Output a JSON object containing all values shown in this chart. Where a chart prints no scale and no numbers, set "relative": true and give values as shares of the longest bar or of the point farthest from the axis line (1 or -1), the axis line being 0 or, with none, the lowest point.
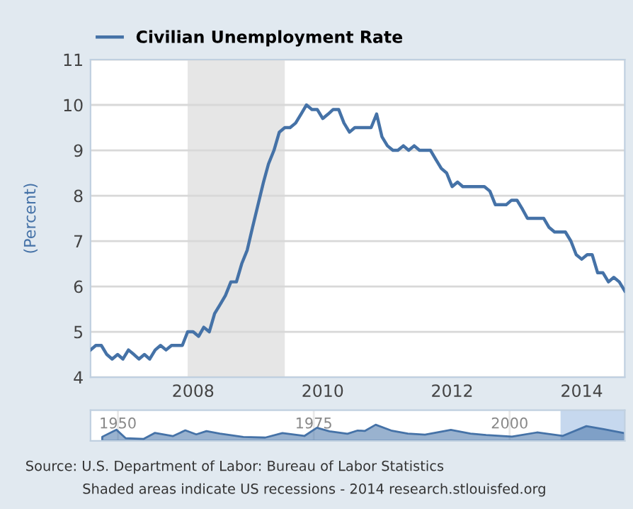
{
  "chart_data": [
    {
      "type": "line",
      "ylabel": "(Percent)",
      "legend": "top",
      "grid": "y",
      "marker": "none",
      "line_style": "solid",
      "x": [
        "2006-06",
        "2006-07",
        "2006-08",
        "2006-09",
        "2006-10",
        "2006-11",
        "2006-12",
        "2007-01",
        "2007-02",
        "2007-03",
        "2007-04",
        "2007-05",
        "2007-06",
        "2007-07",
        "2007-08",
        "2007-09",
        "2007-10",
        "2007-11",
        "2007-12",
        "2008-01",
        "2008-02",
        "2008-03",
        "2008-04",
        "2008-05",
        "2008-06",
        "2008-07",
        "2008-08",
        "2008-09",
        "2008-10",
        "2008-11",
        "2008-12",
        "2009-01",
        "2009-02",
        "2009-03",
        "2009-04",
        "2009-05",
        "2009-06",
        "2009-07",
        "2009-08",
        "2009-09",
        "2009-10",
        "2009-11",
        "2009-12",
        "2010-01",
        "2010-02",
        "2010-03",
        "2010-04",
        "2010-05",
        "2010-06",
        "2010-07",
        "2010-08",
        "2010-09",
        "2010-10",
        "2010-11",
        "2010-12",
        "2011-01",
        "2011-02",
        "2011-03",
        "2011-04",
        "2011-05",
        "2011-06",
        "2011-07",
        "2011-08",
        "2011-09",
        "2011-10",
        "2011-11",
        "2011-12",
        "2012-01",
        "2012-02",
        "2012-03",
        "2012-04",
        "2012-05",
        "2012-06",
        "2012-07",
        "2012-08",
        "2012-09",
        "2012-10",
        "2012-11",
        "2012-12",
        "2013-01",
        "2013-02",
        "2013-03",
        "2013-04",
        "2013-05",
        "2013-06",
        "2013-07",
        "2013-08",
        "2013-09",
        "2013-10",
        "2013-11",
        "2013-12",
        "2014-01",
        "2014-02",
        "2014-03",
        "2014-04",
        "2014-05",
        "2014-06",
        "2014-07",
        "2014-08",
        "2014-09"
      ],
      "series": [
        {
          "name": "Civilian Unemployment Rate",
          "color": "#4572a7",
          "values": [
            4.6,
            4.7,
            4.7,
            4.5,
            4.4,
            4.5,
            4.4,
            4.6,
            4.5,
            4.4,
            4.5,
            4.4,
            4.6,
            4.7,
            4.6,
            4.7,
            4.7,
            4.7,
            5.0,
            5.0,
            4.9,
            5.1,
            5.0,
            5.4,
            5.6,
            5.8,
            6.1,
            6.1,
            6.5,
            6.8,
            7.3,
            7.8,
            8.3,
            8.7,
            9.0,
            9.4,
            9.5,
            9.5,
            9.6,
            9.8,
            10.0,
            9.9,
            9.9,
            9.7,
            9.8,
            9.9,
            9.9,
            9.6,
            9.4,
            9.5,
            9.5,
            9.5,
            9.5,
            9.8,
            9.3,
            9.1,
            9.0,
            9.0,
            9.1,
            9.0,
            9.1,
            9.0,
            9.0,
            9.0,
            8.8,
            8.6,
            8.5,
            8.2,
            8.3,
            8.2,
            8.2,
            8.2,
            8.2,
            8.2,
            8.1,
            7.8,
            7.8,
            7.8,
            7.9,
            7.9,
            7.7,
            7.5,
            7.5,
            7.5,
            7.5,
            7.3,
            7.2,
            7.2,
            7.2,
            7.0,
            6.7,
            6.6,
            6.7,
            6.7,
            6.3,
            6.3,
            6.1,
            6.2,
            6.1,
            5.9
          ]
        }
      ],
      "xlim": [
        "2006-06",
        "2014-09"
      ],
      "xticks": [
        {
          "value": "2008-01",
          "label": "2008"
        },
        {
          "value": "2010-01",
          "label": "2010"
        },
        {
          "value": "2012-01",
          "label": "2012"
        },
        {
          "value": "2014-01",
          "label": "2014"
        }
      ],
      "ylim": [
        4,
        11
      ],
      "yticks": [
        4,
        5,
        6,
        7,
        8,
        9,
        10,
        11
      ],
      "bands": [
        {
          "axis": "x",
          "from": "2007-12",
          "to": "2009-06",
          "color": "#e6e6e6"
        }
      ],
      "annotations": [
        "Source: U.S. Department of Labor: Bureau of Labor Statistics",
        "Shaded areas indicate US recessions - 2014 research.stlouisfed.org"
      ]
    },
    {
      "type": "area",
      "relative": true,
      "tick_labels": "x",
      "grid": "x",
      "x": [
        1948.0,
        1949.8,
        1951.0,
        1953.3,
        1954.7,
        1957.0,
        1958.6,
        1960.0,
        1961.3,
        1963.0,
        1966.0,
        1968.8,
        1971.0,
        1973.8,
        1975.4,
        1977.0,
        1979.3,
        1980.6,
        1981.5,
        1982.9,
        1985.0,
        1987.0,
        1989.2,
        1992.5,
        1995.0,
        1997.0,
        2000.3,
        2003.5,
        2006.8,
        2009.8,
        2012.0,
        2014.7
      ],
      "series": [
        {
          "color": "#4572a7",
          "values": [
            0.25,
            0.69,
            0.16,
            0.12,
            0.49,
            0.29,
            0.65,
            0.4,
            0.6,
            0.45,
            0.24,
            0.2,
            0.48,
            0.3,
            0.81,
            0.59,
            0.44,
            0.64,
            0.61,
            1.0,
            0.62,
            0.45,
            0.38,
            0.68,
            0.45,
            0.36,
            0.26,
            0.52,
            0.31,
            0.91,
            0.72,
            0.47
          ]
        }
      ],
      "xlim": [
        1946.5,
        2014.7
      ],
      "xticks": [
        1950,
        1975,
        2000
      ],
      "bands": [
        {
          "axis": "x",
          "from": 2006.5,
          "to": 2014.7,
          "color": "#c6d8ee"
        }
      ]
    }
  ]
}
